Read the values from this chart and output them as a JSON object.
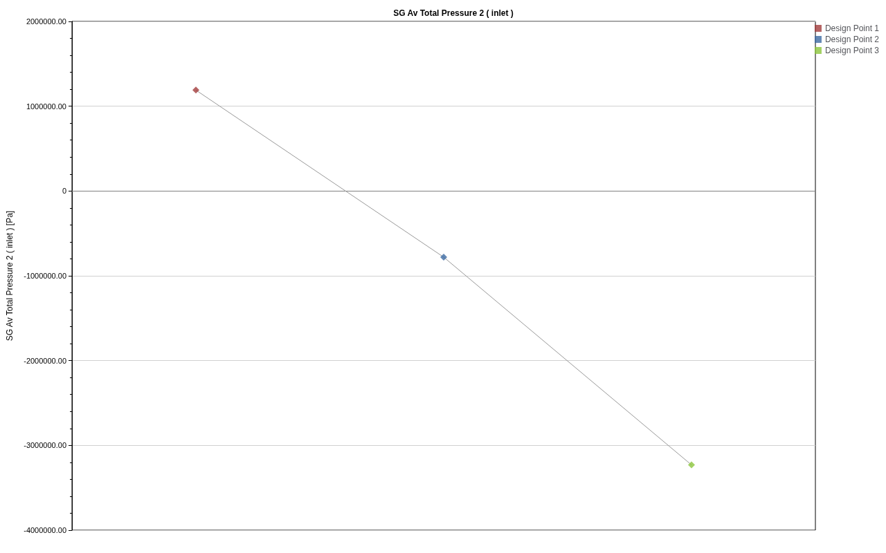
{
  "chart_data": {
    "type": "line",
    "title": "SG Av Total Pressure 2 ( inlet )",
    "ylabel": "SG Av Total Pressure 2 ( inlet ) [Pa]",
    "categories": [
      null,
      null,
      null
    ],
    "series": [
      {
        "color": "#999999",
        "marker": "none",
        "values": [
          1190000,
          -780000,
          -3230000
        ]
      },
      {
        "type": "scatter",
        "name": "Design Point 1",
        "color": "#a23c3c",
        "values": [
          1190000,
          null,
          null
        ]
      },
      {
        "type": "scatter",
        "name": "Design Point 2",
        "color": "#3c6aa2",
        "values": [
          null,
          -780000,
          null
        ]
      },
      {
        "type": "scatter",
        "name": "Design Point 3",
        "color": "#8cc63c",
        "values": [
          null,
          null,
          -3230000
        ]
      }
    ],
    "ylim": [
      -4000000,
      2000000
    ],
    "yticks": [
      {
        "value": -4000000,
        "label": "-4000000.00"
      },
      {
        "value": -3000000,
        "label": "-3000000.00"
      },
      {
        "value": -2000000,
        "label": "-2000000.00"
      },
      {
        "value": -1000000,
        "label": "-1000000.00"
      },
      0,
      {
        "value": 1000000,
        "label": "1000000.00"
      },
      {
        "value": 2000000,
        "label": "2000000.00"
      }
    ],
    "grid": "y",
    "legend": "top right",
    "marker": "diamond"
  }
}
